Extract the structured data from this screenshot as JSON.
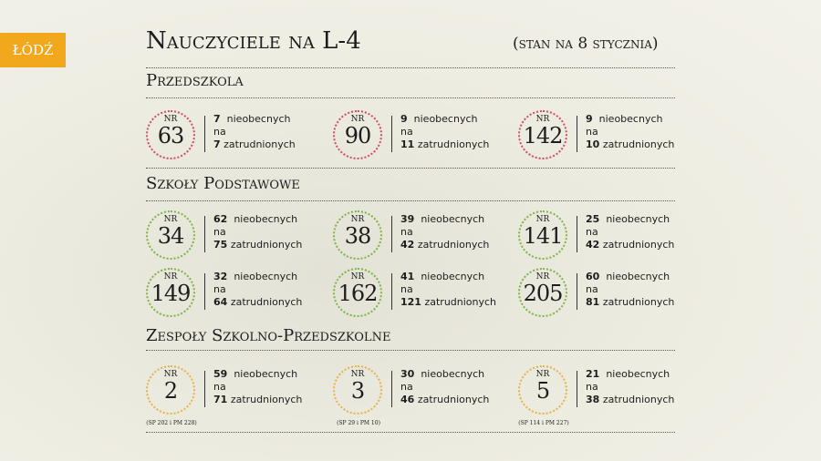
{
  "logo": "ŁÓDŹ",
  "title": "Nauczyciele na L-4",
  "subtitle": "(stan na 8 stycznia)",
  "colors": {
    "przedszkola": "#d24a6e",
    "szkoly": "#7fb446",
    "zespoly": "#e6b24a",
    "logo": "#f2a81d"
  },
  "nr_label": "NR",
  "absent_word": "nieobecnych",
  "na_word": "na",
  "employed_word": "zatrudnionych",
  "sections": [
    {
      "title": "Przedszkola",
      "items": [
        {
          "nr": "63",
          "absent": "7",
          "employed": "7"
        },
        {
          "nr": "90",
          "absent": "9",
          "employed": "11"
        },
        {
          "nr": "142",
          "absent": "9",
          "employed": "10"
        }
      ]
    },
    {
      "title": "Szkoły Podstawowe",
      "items": [
        {
          "nr": "34",
          "absent": "62",
          "employed": "75"
        },
        {
          "nr": "38",
          "absent": "39",
          "employed": "42"
        },
        {
          "nr": "141",
          "absent": "25",
          "employed": "42"
        },
        {
          "nr": "149",
          "absent": "32",
          "employed": "64"
        },
        {
          "nr": "162",
          "absent": "41",
          "employed": "121"
        },
        {
          "nr": "205",
          "absent": "60",
          "employed": "81"
        }
      ]
    },
    {
      "title": "Zespoły Szkolno-Przedszkolne",
      "items": [
        {
          "nr": "2",
          "absent": "59",
          "employed": "71",
          "caption": "(SP 202 i PM 228)"
        },
        {
          "nr": "3",
          "absent": "30",
          "employed": "46",
          "caption": "(SP 29 i PM 10)"
        },
        {
          "nr": "5",
          "absent": "21",
          "employed": "38",
          "caption": "(SP 114 i PM 227)"
        }
      ]
    }
  ]
}
